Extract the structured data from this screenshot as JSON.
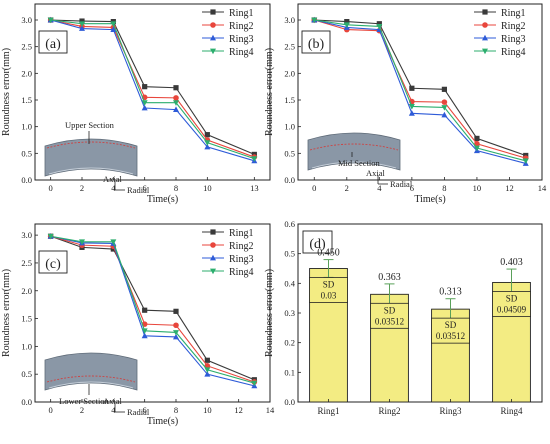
{
  "colors": {
    "series": [
      "#3a3a3a",
      "#e8463c",
      "#2e5bd8",
      "#2cae6e"
    ],
    "bar_fill": "#f3ec83",
    "bar_stroke": "#222222",
    "error_bar": "#5aa05a",
    "ring_body": "#8a97a6",
    "section_line": "#cc4444"
  },
  "chart_data": [
    {
      "type": "line",
      "panel_label": "(a)",
      "title": "",
      "xlabel": "Time(s)",
      "ylabel": "Roundness error(mm)",
      "x": [
        0,
        2,
        4,
        6,
        8,
        10,
        13
      ],
      "x_tick_labels": [
        "0",
        "2",
        "4",
        "6",
        "8",
        "10",
        "13"
      ],
      "y_ticks": [
        0.0,
        0.5,
        1.0,
        1.5,
        2.0,
        2.5,
        3.0
      ],
      "y_tick_labels": [
        "0.0",
        "0.5",
        "1.0",
        "1.5",
        "2.0",
        "2.5",
        "3.0"
      ],
      "ylim": [
        0.0,
        3.3
      ],
      "legend_position": "top-right",
      "inset": {
        "section_label": "Upper Section",
        "axial_label": "Axial",
        "radial_label": "Radial"
      },
      "series": [
        {
          "name": "Ring1",
          "values": [
            3.0,
            2.98,
            2.97,
            1.75,
            1.73,
            0.85,
            0.48
          ]
        },
        {
          "name": "Ring2",
          "values": [
            3.0,
            2.88,
            2.86,
            1.55,
            1.54,
            0.75,
            0.43
          ]
        },
        {
          "name": "Ring3",
          "values": [
            3.0,
            2.84,
            2.82,
            1.35,
            1.32,
            0.62,
            0.36
          ]
        },
        {
          "name": "Ring4",
          "values": [
            3.0,
            2.93,
            2.93,
            1.45,
            1.45,
            0.7,
            0.4
          ]
        }
      ]
    },
    {
      "type": "line",
      "panel_label": "(b)",
      "title": "",
      "xlabel": "Time(s)",
      "ylabel": "Roundness error(mm)",
      "x": [
        0,
        2,
        4,
        6,
        8,
        10,
        13
      ],
      "x_tick_labels": [
        "0",
        "2",
        "4",
        "6",
        "8",
        "10",
        "12",
        "14"
      ],
      "x_tick_values": [
        0,
        2,
        4,
        6,
        8,
        10,
        12,
        14
      ],
      "y_ticks": [
        0.0,
        0.5,
        1.0,
        1.5,
        2.0,
        2.5,
        3.0
      ],
      "y_tick_labels": [
        "0.0",
        "0.5",
        "1.0",
        "1.5",
        "2.0",
        "2.5",
        "3.0"
      ],
      "ylim": [
        0.0,
        3.3
      ],
      "xlim": [
        -1,
        14
      ],
      "legend_position": "top-right",
      "inset": {
        "section_label": "Mid Section",
        "axial_label": "Axial",
        "radial_label": "Radial"
      },
      "series": [
        {
          "name": "Ring1",
          "values": [
            3.0,
            2.97,
            2.93,
            1.72,
            1.7,
            0.78,
            0.46
          ]
        },
        {
          "name": "Ring2",
          "values": [
            3.0,
            2.82,
            2.8,
            1.47,
            1.46,
            0.68,
            0.41
          ]
        },
        {
          "name": "Ring3",
          "values": [
            3.0,
            2.86,
            2.82,
            1.25,
            1.22,
            0.55,
            0.31
          ]
        },
        {
          "name": "Ring4",
          "values": [
            3.0,
            2.91,
            2.88,
            1.38,
            1.36,
            0.6,
            0.36
          ]
        }
      ]
    },
    {
      "type": "line",
      "panel_label": "(c)",
      "title": "",
      "xlabel": "Time(s)",
      "ylabel": "Roundness error(mm)",
      "x": [
        0,
        2,
        4,
        6,
        8,
        10,
        13
      ],
      "x_tick_labels": [
        "0",
        "2",
        "4",
        "6",
        "8",
        "10",
        "12",
        "14"
      ],
      "x_tick_values": [
        0,
        2,
        4,
        6,
        8,
        10,
        12,
        14
      ],
      "y_ticks": [
        0.0,
        0.5,
        1.0,
        1.5,
        2.0,
        2.5,
        3.0
      ],
      "y_tick_labels": [
        "0.0",
        "0.5",
        "1.0",
        "1.5",
        "2.0",
        "2.5",
        "3.0"
      ],
      "ylim": [
        0.0,
        3.2
      ],
      "xlim": [
        -1,
        14
      ],
      "legend_position": "top-right",
      "inset": {
        "section_label": "Lower Section",
        "axial_label": "Axial",
        "radial_label": "Radial"
      },
      "series": [
        {
          "name": "Ring1",
          "values": [
            2.98,
            2.78,
            2.75,
            1.65,
            1.63,
            0.75,
            0.4
          ]
        },
        {
          "name": "Ring2",
          "values": [
            2.98,
            2.82,
            2.8,
            1.4,
            1.38,
            0.65,
            0.36
          ]
        },
        {
          "name": "Ring3",
          "values": [
            2.98,
            2.86,
            2.85,
            1.19,
            1.17,
            0.5,
            0.29
          ]
        },
        {
          "name": "Ring4",
          "values": [
            2.98,
            2.88,
            2.88,
            1.28,
            1.25,
            0.58,
            0.34
          ]
        }
      ]
    },
    {
      "type": "bar",
      "panel_label": "(d)",
      "title": "",
      "xlabel": "",
      "ylabel": "Roundness error(mm)",
      "categories": [
        "Ring1",
        "Ring2",
        "Ring3",
        "Ring4"
      ],
      "values": [
        0.45,
        0.363,
        0.313,
        0.403
      ],
      "value_labels": [
        "0.450",
        "0.363",
        "0.313",
        "0.403"
      ],
      "errors": [
        0.03,
        0.03512,
        0.03512,
        0.04509
      ],
      "sd_title": "SD",
      "sd_labels": [
        "0.03",
        "0.03512",
        "0.03512",
        "0.04509"
      ],
      "y_ticks": [
        0.0,
        0.1,
        0.2,
        0.3,
        0.4,
        0.5,
        0.6
      ],
      "y_tick_labels": [
        "0.0",
        "0.1",
        "0.2",
        "0.3",
        "0.4",
        "0.5",
        "0.6"
      ],
      "ylim": [
        0.0,
        0.6
      ]
    }
  ]
}
